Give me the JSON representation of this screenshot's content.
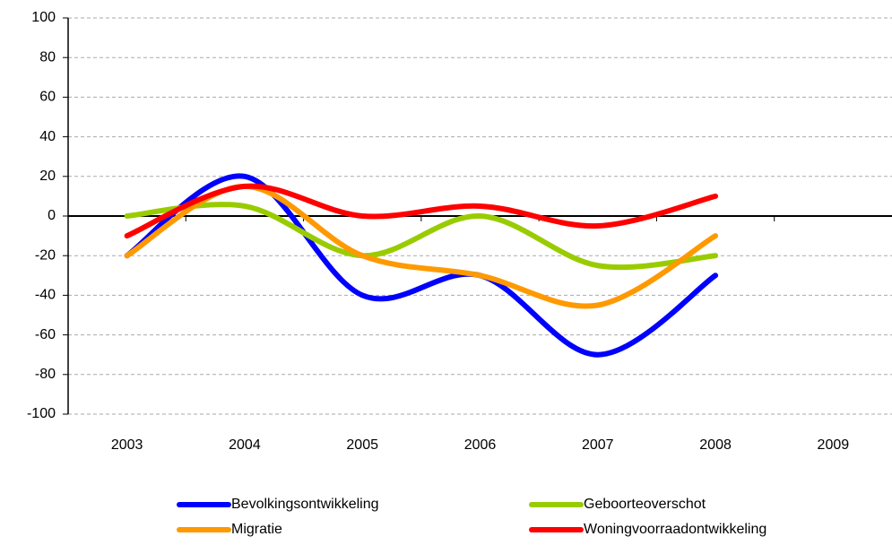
{
  "chart_data": {
    "type": "line",
    "categories": [
      "2003",
      "2004",
      "2005",
      "2006",
      "2007",
      "2008",
      "2009"
    ],
    "series": [
      {
        "name": "Bevolkingsontwikkeling",
        "color": "#0000ff",
        "values": [
          -20,
          20,
          -40,
          -30,
          -70,
          -30,
          null
        ]
      },
      {
        "name": "Geboorteoverschot",
        "color": "#99cc00",
        "values": [
          0,
          5,
          -20,
          0,
          -25,
          -20,
          null
        ]
      },
      {
        "name": "Migratie",
        "color": "#ff9900",
        "values": [
          -20,
          15,
          -20,
          -30,
          -45,
          -10,
          null
        ]
      },
      {
        "name": "Woningvoorraadontwikkeling",
        "color": "#ff0000",
        "values": [
          -10,
          15,
          0,
          5,
          -5,
          10,
          null
        ]
      }
    ],
    "ylim": [
      -100,
      100
    ],
    "yticks": [
      -100,
      -80,
      -60,
      -40,
      -20,
      0,
      20,
      40,
      60,
      80,
      100
    ],
    "grid": true,
    "smooth": true,
    "legend": "bottom"
  }
}
